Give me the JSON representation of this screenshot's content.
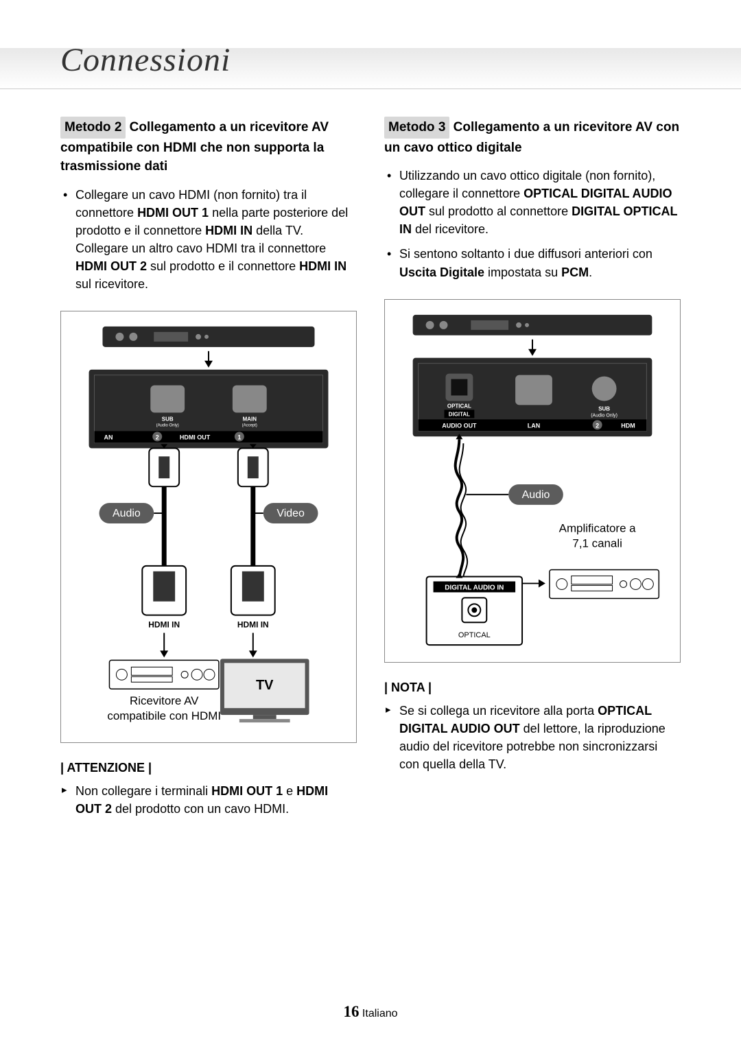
{
  "page": {
    "title": "Connessioni",
    "page_number": "16",
    "page_lang": "Italiano"
  },
  "left": {
    "method_badge": "Metodo 2",
    "method_rest": " Collegamento a un ricevitore AV compatibile con HDMI che non supporta la trasmissione dati",
    "bullet1_html": "Collegare un cavo HDMI (non fornito) tra il connettore <b>HDMI OUT 1</b> nella parte posteriore del prodotto e il connettore <b>HDMI IN</b> della TV. Collegare un altro cavo HDMI tra il connettore <b>HDMI OUT 2</b> sul prodotto e il connettore <b>HDMI IN</b> sul ricevitore.",
    "attention_label": "| ATTENZIONE |",
    "attention_item_html": "Non collegare i terminali <b>HDMI OUT 1</b> e <b>HDMI OUT 2</b> del prodotto con un cavo HDMI.",
    "diagram": {
      "port_sub": "SUB",
      "port_sub2": "(Audio Only)",
      "port_main": "MAIN",
      "port_main2": "(Accept)",
      "port_lan": "AN",
      "port_num2": "2",
      "port_hdmi_out": "HDMI OUT",
      "port_num1": "1",
      "audio_label": "Audio",
      "video_label": "Video",
      "hdmi_in_left": "HDMI IN",
      "hdmi_in_right": "HDMI IN",
      "tv_label": "TV",
      "receiver_caption": "Ricevitore AV\ncompatibile con HDMI"
    }
  },
  "right": {
    "method_badge": "Metodo 3",
    "method_rest": " Collegamento a un ricevitore AV con un cavo ottico digitale",
    "bullet1_html": "Utilizzando un cavo ottico digitale (non fornito), collegare il connettore <b>OPTICAL DIGITAL AUDIO OUT</b> sul prodotto al connettore <b>DIGITAL OPTICAL IN</b> del ricevitore.",
    "bullet2_html": "Si sentono soltanto i due diffusori anteriori con <b>Uscita Digitale</b> impostata su <b>PCM</b>.",
    "nota_label": "| NOTA |",
    "nota_item_html": "Se si collega un ricevitore alla porta <b>OPTICAL DIGITAL AUDIO OUT</b> del lettore, la riproduzione audio del ricevitore potrebbe non sincronizzarsi con quella della TV.",
    "diagram": {
      "port_optical": "OPTICAL",
      "port_digital": "DIGITAL",
      "port_audio_out": "AUDIO OUT",
      "port_lan": "LAN",
      "port_sub": "SUB",
      "port_sub2": "(Audio Only)",
      "port_num2": "2",
      "port_hdm": "HDM",
      "audio_label": "Audio",
      "amp_caption": "Amplificatore a\n7,1 canali",
      "digital_audio_in": "DIGITAL AUDIO IN",
      "optical_label": "OPTICAL"
    }
  },
  "colors": {
    "badge_bg": "#d8d8d8",
    "rounded_label_bg": "#5c5c5c",
    "black_label_bg": "#000000",
    "diagram_border": "#888888",
    "panel_dark": "#2a2a2a"
  }
}
